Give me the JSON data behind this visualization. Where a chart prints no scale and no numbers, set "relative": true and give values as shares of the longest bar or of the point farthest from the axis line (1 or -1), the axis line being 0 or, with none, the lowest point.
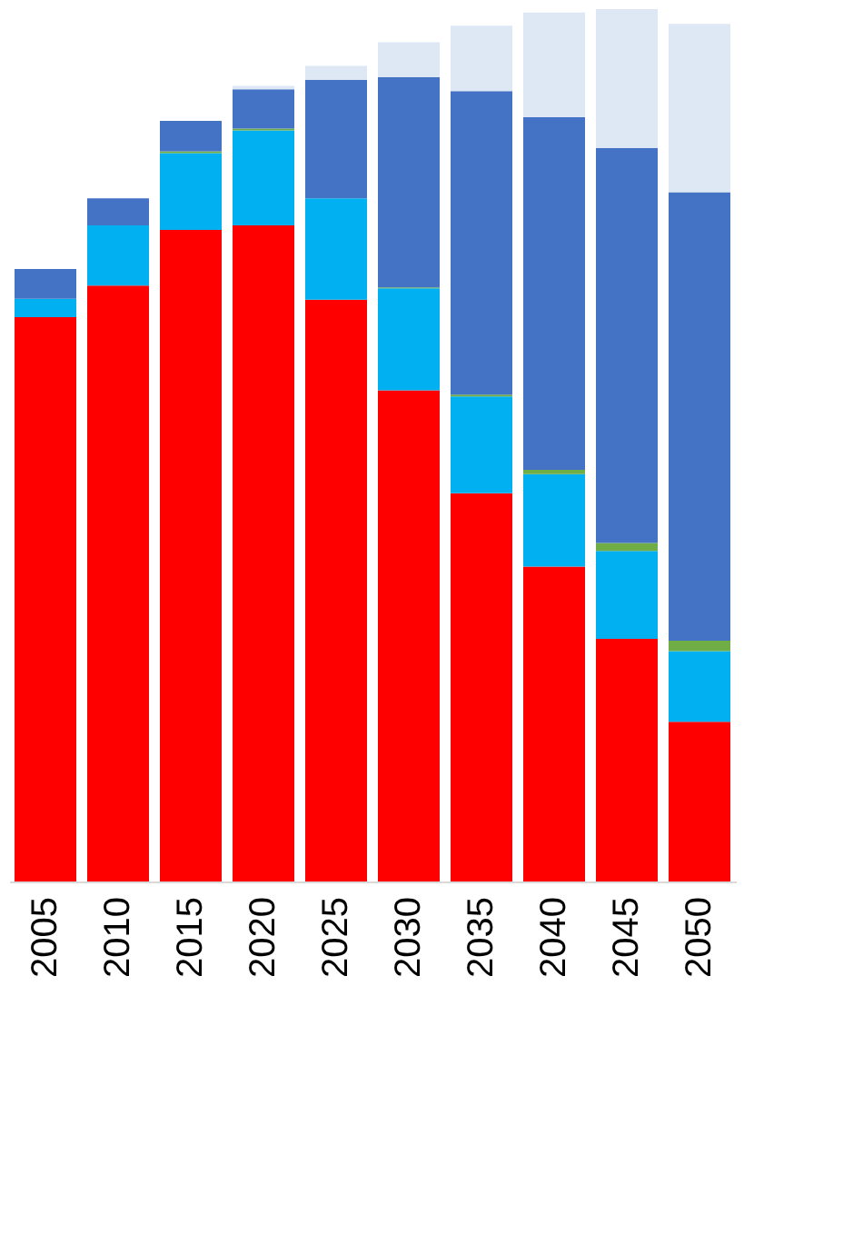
{
  "chart_data": {
    "type": "bar",
    "stacked": true,
    "relative": true,
    "legend": false,
    "categories": [
      "2005",
      "2010",
      "2015",
      "2020",
      "2025",
      "2030",
      "2035",
      "2040",
      "2045",
      "2050"
    ],
    "series": [
      {
        "color": "#ff0000",
        "values": [
          0.647,
          0.683,
          0.747,
          0.752,
          0.667,
          0.563,
          0.445,
          0.361,
          0.278,
          0.183
        ]
      },
      {
        "color": "#00b0f0",
        "values": [
          0.021,
          0.069,
          0.088,
          0.109,
          0.116,
          0.117,
          0.111,
          0.106,
          0.101,
          0.081
        ]
      },
      {
        "color": "#70ad47",
        "values": [
          0,
          0,
          0.002,
          0.002,
          0,
          0.001,
          0.002,
          0.005,
          0.009,
          0.012
        ]
      },
      {
        "color": "#4472c4",
        "values": [
          0.034,
          0.031,
          0.035,
          0.045,
          0.136,
          0.241,
          0.348,
          0.404,
          0.453,
          0.514
        ]
      },
      {
        "color": "#dee8f5",
        "values": [
          0,
          0,
          0,
          0.004,
          0.016,
          0.04,
          0.075,
          0.12,
          0.159,
          0.193
        ]
      }
    ]
  }
}
